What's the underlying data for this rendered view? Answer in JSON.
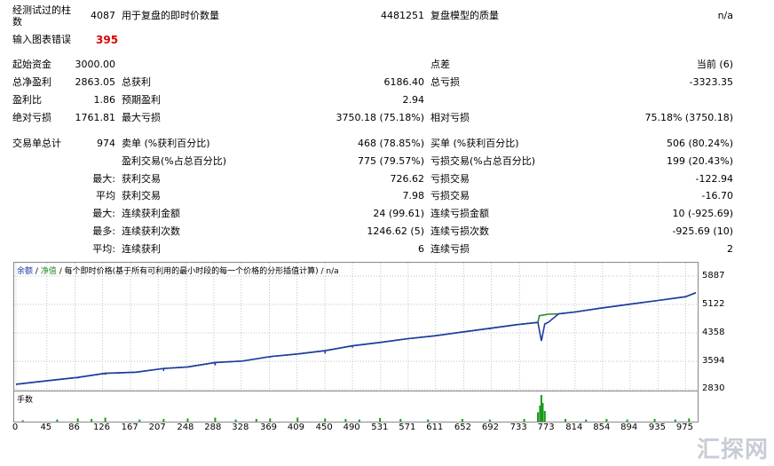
{
  "report": {
    "r1": {
      "l1": "经测试过的柱",
      "l1b": "数",
      "v1": "4087",
      "l2": "用于复盘的即时价数量",
      "v2": "4481251",
      "l3": "复盘模型的质量",
      "v3": "n/a"
    },
    "r2": {
      "l1": "输入图表错误",
      "v1": "395"
    },
    "r3": {
      "l1": "起始资金",
      "v1": "3000.00",
      "l3": "点差",
      "v3": "当前 (6)"
    },
    "r4": {
      "l1": "总净盈利",
      "v1": "2863.05",
      "l2": "总获利",
      "v2": "6186.40",
      "l3": "总亏损",
      "v3": "-3323.35"
    },
    "r5": {
      "l1": "盈利比",
      "v1": "1.86",
      "l2": "预期盈利",
      "v2": "2.94"
    },
    "r6": {
      "l1": "绝对亏损",
      "v1": "1761.81",
      "l2": "最大亏损",
      "v2": "3750.18 (75.18%)",
      "l3": "相对亏损",
      "v3": "75.18% (3750.18)"
    },
    "r7": {
      "l1": "交易单总计",
      "v1": "974",
      "l2": "卖单 (%获利百分比)",
      "v2": "468 (78.85%)",
      "l3": "买单 (%获利百分比)",
      "v3": "506 (80.24%)"
    },
    "r8": {
      "l2": "盈利交易(%占总百分比)",
      "v2": "775 (79.57%)",
      "l3": "亏损交易(%占总百分比)",
      "v3": "199 (20.43%)"
    },
    "r9": {
      "p": "最大:",
      "l2": "获利交易",
      "v2": "726.62",
      "l3": "亏损交易",
      "v3": "-122.94"
    },
    "r10": {
      "p": "平均",
      "l2": "获利交易",
      "v2": "7.98",
      "l3": "亏损交易",
      "v3": "-16.70"
    },
    "r11": {
      "p": "最大:",
      "l2": "连续获利金额",
      "v2": "24 (99.61)",
      "l3": "连续亏损金额",
      "v3": "10 (-925.69)"
    },
    "r12": {
      "p": "最多:",
      "l2": "连续获利次数",
      "v2": "1246.62 (5)",
      "l3": "连续亏损次数",
      "v3": "-925.69 (10)"
    },
    "r13": {
      "p": "平均:",
      "l2": "连续获利",
      "v2": "6",
      "l3": "连续亏损",
      "v3": "2"
    }
  },
  "chart_data": [
    {
      "type": "line",
      "legend": [
        "余额",
        "净值",
        "每个即时价格(基于所有可利用的最小时段的每一个价格的分形插值计算)",
        "n/a"
      ],
      "ylim": [
        2830,
        5887
      ],
      "ytick_labels": [
        "5887",
        "5122",
        "4358",
        "3594",
        "2830"
      ],
      "xlim": [
        0,
        990
      ],
      "xtick_labels": [
        "0",
        "45",
        "86",
        "126",
        "167",
        "207",
        "248",
        "288",
        "328",
        "369",
        "409",
        "450",
        "490",
        "531",
        "571",
        "611",
        "652",
        "692",
        "733",
        "773",
        "814",
        "854",
        "894",
        "935",
        "975"
      ],
      "series": [
        {
          "name": "余额",
          "color": "#1f3aa8",
          "points": [
            [
              0,
              2975
            ],
            [
              50,
              3080
            ],
            [
              90,
              3160
            ],
            [
              130,
              3270
            ],
            [
              175,
              3300
            ],
            [
              215,
              3400
            ],
            [
              250,
              3440
            ],
            [
              290,
              3560
            ],
            [
              330,
              3600
            ],
            [
              370,
              3720
            ],
            [
              410,
              3790
            ],
            [
              450,
              3880
            ],
            [
              490,
              4010
            ],
            [
              530,
              4100
            ],
            [
              570,
              4200
            ],
            [
              610,
              4280
            ],
            [
              650,
              4380
            ],
            [
              690,
              4480
            ],
            [
              730,
              4580
            ],
            [
              760,
              4640
            ],
            [
              765,
              4140
            ],
            [
              770,
              4600
            ],
            [
              775,
              4640
            ],
            [
              790,
              4870
            ],
            [
              814,
              4920
            ],
            [
              850,
              5020
            ],
            [
              894,
              5130
            ],
            [
              935,
              5230
            ],
            [
              975,
              5330
            ],
            [
              990,
              5440
            ]
          ]
        },
        {
          "name": "净值",
          "color": "#2a8a2a",
          "points": [
            [
              0,
              2975
            ],
            [
              50,
              3080
            ],
            [
              90,
              3160
            ],
            [
              130,
              3270
            ],
            [
              175,
              3300
            ],
            [
              215,
              3400
            ],
            [
              250,
              3440
            ],
            [
              290,
              3560
            ],
            [
              330,
              3600
            ],
            [
              370,
              3720
            ],
            [
              410,
              3790
            ],
            [
              450,
              3880
            ],
            [
              490,
              4010
            ],
            [
              530,
              4100
            ],
            [
              570,
              4200
            ],
            [
              610,
              4280
            ],
            [
              650,
              4380
            ],
            [
              690,
              4480
            ],
            [
              730,
              4580
            ],
            [
              760,
              4640
            ],
            [
              762,
              4820
            ],
            [
              775,
              4860
            ],
            [
              790,
              4870
            ],
            [
              814,
              4920
            ],
            [
              850,
              5020
            ],
            [
              894,
              5130
            ],
            [
              935,
              5230
            ],
            [
              975,
              5330
            ],
            [
              990,
              5440
            ]
          ]
        }
      ],
      "dips": [
        [
          90,
          3130
        ],
        [
          130,
          3230
        ],
        [
          215,
          3330
        ],
        [
          290,
          3480
        ],
        [
          370,
          3690
        ],
        [
          450,
          3800
        ],
        [
          490,
          3960
        ],
        [
          690,
          4450
        ]
      ]
    },
    {
      "type": "bar",
      "title": "手数",
      "xlim": [
        0,
        990
      ],
      "ylim": [
        0,
        1
      ],
      "bars": [
        [
          10,
          0.05
        ],
        [
          60,
          0.08
        ],
        [
          90,
          0.12
        ],
        [
          110,
          0.1
        ],
        [
          130,
          0.15
        ],
        [
          180,
          0.08
        ],
        [
          215,
          0.1
        ],
        [
          250,
          0.12
        ],
        [
          290,
          0.15
        ],
        [
          320,
          0.08
        ],
        [
          350,
          0.1
        ],
        [
          370,
          0.12
        ],
        [
          410,
          0.15
        ],
        [
          450,
          0.12
        ],
        [
          480,
          0.1
        ],
        [
          500,
          0.08
        ],
        [
          530,
          0.14
        ],
        [
          560,
          0.1
        ],
        [
          600,
          0.08
        ],
        [
          650,
          0.1
        ],
        [
          690,
          0.08
        ],
        [
          740,
          0.1
        ],
        [
          760,
          0.35
        ],
        [
          763,
          0.6
        ],
        [
          765,
          1.0
        ],
        [
          767,
          0.7
        ],
        [
          770,
          0.4
        ],
        [
          800,
          0.1
        ],
        [
          830,
          0.08
        ],
        [
          860,
          0.1
        ],
        [
          890,
          0.08
        ],
        [
          930,
          0.1
        ],
        [
          960,
          0.08
        ],
        [
          980,
          0.12
        ]
      ]
    }
  ],
  "watermark": "汇探网"
}
